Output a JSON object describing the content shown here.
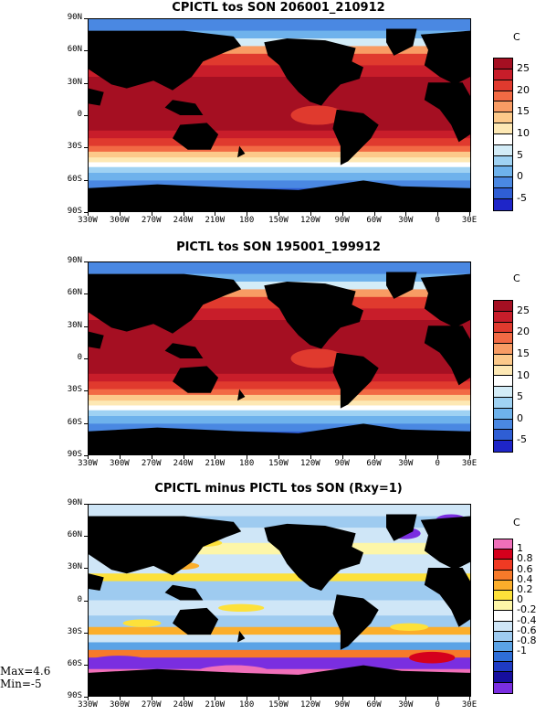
{
  "x_tick_labels": [
    "330W",
    "300W",
    "270W",
    "240W",
    "210W",
    "180",
    "150W",
    "120W",
    "90W",
    "60W",
    "30W",
    "0",
    "30E"
  ],
  "y_tick_labels": [
    "90N",
    "60N",
    "30N",
    "0",
    "30S",
    "60S",
    "90S"
  ],
  "panels": [
    {
      "title": "CPICTL tos SON 206001_210912",
      "unit": "C",
      "colorbar_colors": [
        "#a50f22",
        "#c81d2a",
        "#e03a2e",
        "#f26a44",
        "#f89c64",
        "#fcc98a",
        "#fde8b4",
        "#ffffff",
        "#d3ecf7",
        "#9fd2f3",
        "#6eb2ec",
        "#4a88e2",
        "#2f5ed4",
        "#1e25c8"
      ],
      "colorbar_labels": [
        "25",
        "20",
        "15",
        "10",
        "5",
        "0",
        "-5"
      ],
      "style": "sst"
    },
    {
      "title": "PICTL tos SON 195001_199912",
      "unit": "C",
      "colorbar_colors": [
        "#a50f22",
        "#c81d2a",
        "#e03a2e",
        "#f26a44",
        "#f89c64",
        "#fcc98a",
        "#fde8b4",
        "#ffffff",
        "#d3ecf7",
        "#9fd2f3",
        "#6eb2ec",
        "#4a88e2",
        "#2f5ed4",
        "#1e25c8"
      ],
      "colorbar_labels": [
        "25",
        "20",
        "15",
        "10",
        "5",
        "0",
        "-5"
      ],
      "style": "sst"
    },
    {
      "title": "CPICTL minus PICTL tos SON (Rxy=1)",
      "unit": "C",
      "colorbar_colors": [
        "#f06fb9",
        "#d5001c",
        "#f03a23",
        "#f77a2a",
        "#fbae2b",
        "#fde13a",
        "#fdf6a8",
        "#ffffff",
        "#cfe6f7",
        "#9ecbf0",
        "#5ba3e6",
        "#2e6ed8",
        "#1f3bc4",
        "#160e9e",
        "#7a2ee0"
      ],
      "colorbar_labels": [
        "1",
        "0.8",
        "0.6",
        "0.4",
        "0.2",
        "0",
        "-0.2",
        "-0.4",
        "-0.6",
        "-0.8",
        "-1"
      ],
      "style": "diff",
      "max_label": "Max=4.6",
      "min_label": "Min=-5"
    }
  ]
}
